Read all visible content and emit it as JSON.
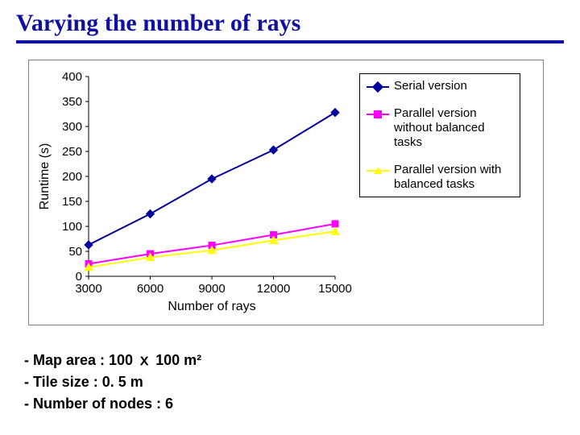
{
  "title": "Varying the number of rays",
  "chart": {
    "type": "line",
    "xlabel": "Number of rays",
    "ylabel": "Runtime (s)",
    "xlim": [
      3000,
      15000
    ],
    "ylim": [
      0,
      400
    ],
    "xticks": [
      3000,
      6000,
      9000,
      12000,
      15000
    ],
    "yticks": [
      0,
      50,
      100,
      150,
      200,
      250,
      300,
      350,
      400
    ],
    "axis_color": "#000000",
    "tick_font_size": 15,
    "label_font_size": 16,
    "grid": false,
    "background_color": "#ffffff",
    "line_width": 2,
    "series": [
      {
        "name": "Serial version",
        "color": "#0000a0",
        "marker": "diamond",
        "marker_fill": "#0000a0",
        "x": [
          3000,
          6000,
          9000,
          12000,
          15000
        ],
        "y": [
          63,
          125,
          195,
          253,
          328
        ]
      },
      {
        "name": "Parallel version without balanced tasks",
        "color": "#ff00ff",
        "marker": "square",
        "marker_fill": "#ff00ff",
        "x": [
          3000,
          6000,
          9000,
          12000,
          15000
        ],
        "y": [
          25,
          45,
          62,
          83,
          105
        ]
      },
      {
        "name": "Parallel version with balanced tasks",
        "color": "#ffff00",
        "marker": "triangle",
        "marker_fill": "#ffff00",
        "x": [
          3000,
          6000,
          9000,
          12000,
          15000
        ],
        "y": [
          18,
          38,
          52,
          72,
          90
        ]
      }
    ]
  },
  "notes": [
    "- Map area : 100 ｘ 100 m²",
    "- Tile size : 0. 5 m",
    "- Number of nodes : 6"
  ]
}
